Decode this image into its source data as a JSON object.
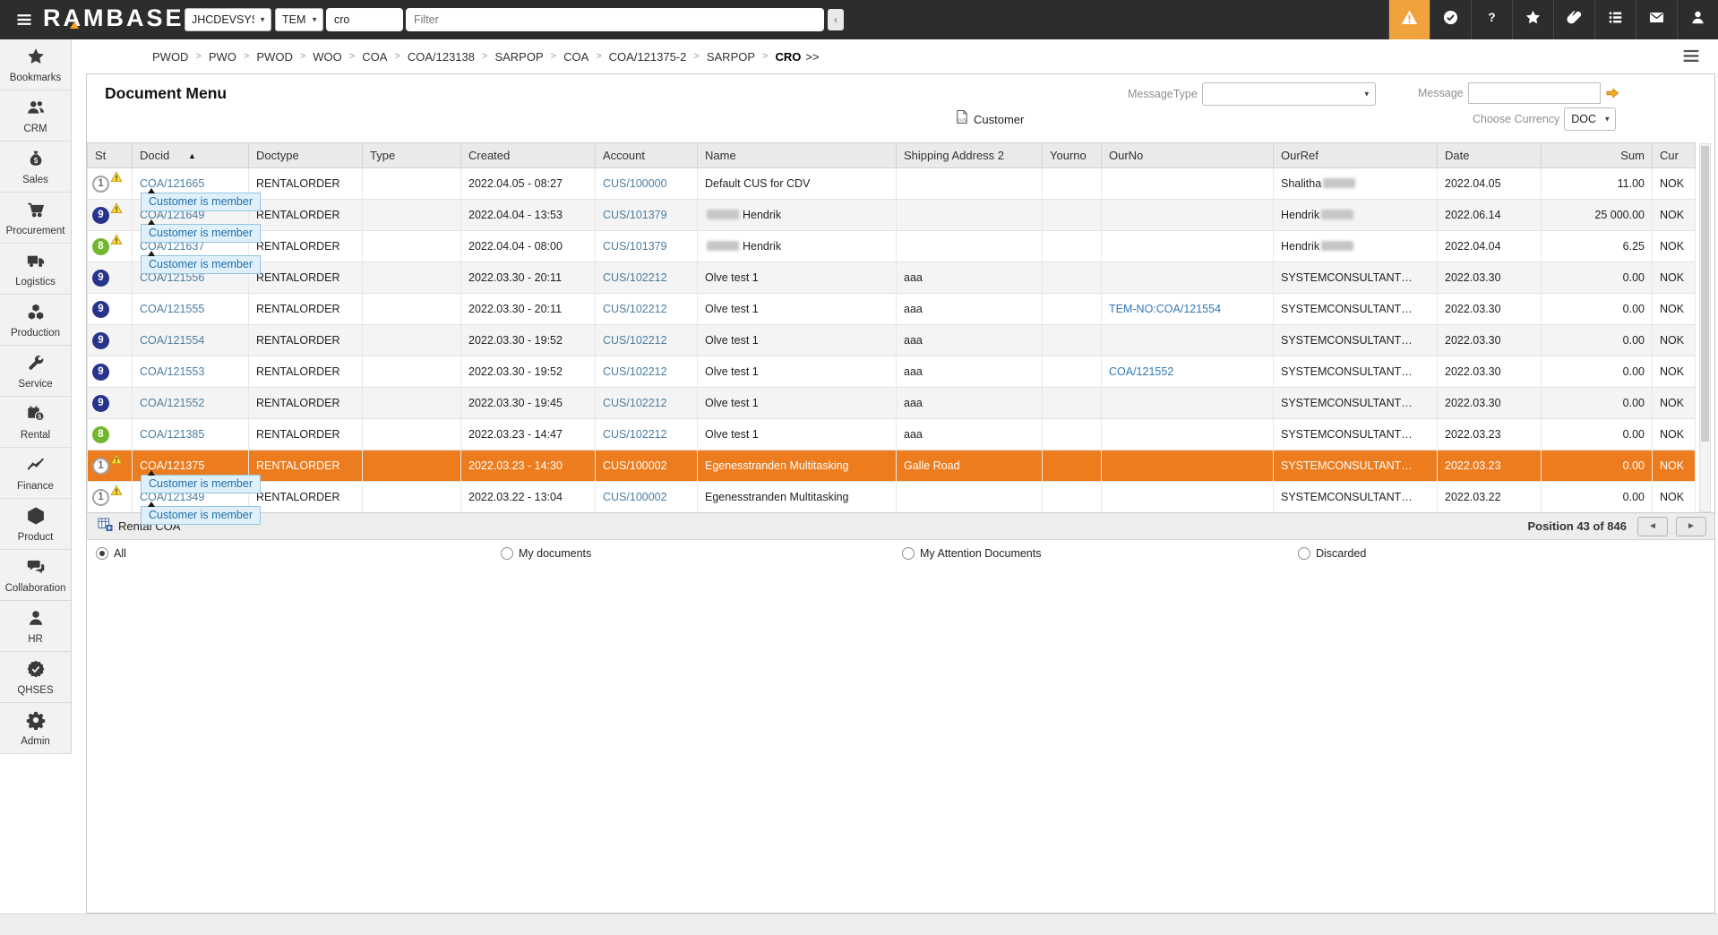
{
  "topbar": {
    "logo": "RAMBASE",
    "system_select": "JHCDEVSYS",
    "module_select": "TEM-NO",
    "search_value": "cro",
    "filter_placeholder": "Filter",
    "collapse_button": "‹",
    "icons": [
      {
        "name": "alert-icon",
        "icon": "alert",
        "active": true
      },
      {
        "name": "approval-icon",
        "icon": "check-seal",
        "active": false
      },
      {
        "name": "help-icon",
        "icon": "help",
        "active": false
      },
      {
        "name": "favorites-icon",
        "icon": "star",
        "active": false
      },
      {
        "name": "attachments-icon",
        "icon": "paperclip",
        "active": false
      },
      {
        "name": "tasklist-icon",
        "icon": "list",
        "active": false
      },
      {
        "name": "messages-icon",
        "icon": "mail",
        "active": false
      },
      {
        "name": "user-icon",
        "icon": "user",
        "active": false
      }
    ]
  },
  "breadcrumb": {
    "items": [
      "PWOD",
      "PWO",
      "PWOD",
      "WOO",
      "COA",
      "COA/123138",
      "SARPOP",
      "COA",
      "COA/121375-2",
      "SARPOP",
      "CRO"
    ],
    "suffix": ">>"
  },
  "sidebar": [
    {
      "label": "Bookmarks",
      "icon": "star"
    },
    {
      "label": "CRM",
      "icon": "people"
    },
    {
      "label": "Sales",
      "icon": "money-bag"
    },
    {
      "label": "Procurement",
      "icon": "cart"
    },
    {
      "label": "Logistics",
      "icon": "truck"
    },
    {
      "label": "Production",
      "icon": "cubes"
    },
    {
      "label": "Service",
      "icon": "wrench"
    },
    {
      "label": "Rental",
      "icon": "calendar-dollar"
    },
    {
      "label": "Finance",
      "icon": "chart-line"
    },
    {
      "label": "Product",
      "icon": "cube"
    },
    {
      "label": "Collaboration",
      "icon": "chat"
    },
    {
      "label": "HR",
      "icon": "person"
    },
    {
      "label": "QHSES",
      "icon": "badge-check"
    },
    {
      "label": "Admin",
      "icon": "gear"
    }
  ],
  "page": {
    "title": "Document Menu",
    "customer_button": "Customer",
    "message_type_label": "MessageType",
    "message_label": "Message",
    "choose_currency_label": "Choose Currency",
    "currency_value": "DOC"
  },
  "table": {
    "columns": [
      "St",
      "Docid",
      "Doctype",
      "Type",
      "Created",
      "Account",
      "Name",
      "Shipping Address 2",
      "Yourno",
      "OurNo",
      "OurRef",
      "Date",
      "Sum",
      "Cur"
    ],
    "sorted_column": "Docid",
    "sort_indicator": "▲",
    "rows": [
      {
        "status": "1",
        "status_style": "plain",
        "warning": true,
        "docid": "COA/121665",
        "tooltip": "Customer is member",
        "doctype": "RENTALORDER",
        "type": "",
        "created": "2022.04.05 - 08:27",
        "account": "CUS/100000",
        "name": "Default CUS for CDV",
        "name_redact": "",
        "shipping": "",
        "yourno": "",
        "ourno": "",
        "ourref": "Shalitha",
        "ourref_redact": "after",
        "date": "2022.04.05",
        "sum": "11.00",
        "cur": "NOK",
        "selected": false
      },
      {
        "status": "9",
        "status_style": "blue",
        "warning": true,
        "docid": "COA/121649",
        "tooltip": "Customer is member",
        "doctype": "RENTALORDER",
        "type": "",
        "created": "2022.04.04 - 13:53",
        "account": "CUS/101379",
        "name": "Hendrik",
        "name_redact": "before",
        "shipping": "",
        "yourno": "",
        "ourno": "",
        "ourref": "Hendrik",
        "ourref_redact": "after",
        "date": "2022.06.14",
        "sum": "25 000.00",
        "cur": "NOK",
        "selected": false
      },
      {
        "status": "8",
        "status_style": "green",
        "warning": true,
        "docid": "COA/121637",
        "tooltip": "Customer is member",
        "doctype": "RENTALORDER",
        "type": "",
        "created": "2022.04.04 - 08:00",
        "account": "CUS/101379",
        "name": "Hendrik",
        "name_redact": "before",
        "shipping": "",
        "yourno": "",
        "ourno": "",
        "ourref": "Hendrik",
        "ourref_redact": "after",
        "date": "2022.04.04",
        "sum": "6.25",
        "cur": "NOK",
        "selected": false
      },
      {
        "status": "9",
        "status_style": "blue",
        "warning": false,
        "docid": "COA/121556",
        "tooltip": "",
        "doctype": "RENTALORDER",
        "type": "",
        "created": "2022.03.30 - 20:11",
        "account": "CUS/102212",
        "name": "Olve test 1",
        "name_redact": "",
        "shipping": "aaa",
        "yourno": "",
        "ourno": "",
        "ourref": "SYSTEMCONSULTANT…",
        "ourref_redact": "",
        "date": "2022.03.30",
        "sum": "0.00",
        "cur": "NOK",
        "selected": false
      },
      {
        "status": "9",
        "status_style": "blue",
        "warning": false,
        "docid": "COA/121555",
        "tooltip": "",
        "doctype": "RENTALORDER",
        "type": "",
        "created": "2022.03.30 - 20:11",
        "account": "CUS/102212",
        "name": "Olve test 1",
        "name_redact": "",
        "shipping": "aaa",
        "yourno": "",
        "ourno": "TEM-NO:COA/121554",
        "ourref": "SYSTEMCONSULTANT…",
        "ourref_redact": "",
        "date": "2022.03.30",
        "sum": "0.00",
        "cur": "NOK",
        "selected": false
      },
      {
        "status": "9",
        "status_style": "blue",
        "warning": false,
        "docid": "COA/121554",
        "tooltip": "",
        "doctype": "RENTALORDER",
        "type": "",
        "created": "2022.03.30 - 19:52",
        "account": "CUS/102212",
        "name": "Olve test 1",
        "name_redact": "",
        "shipping": "aaa",
        "yourno": "",
        "ourno": "",
        "ourref": "SYSTEMCONSULTANT…",
        "ourref_redact": "",
        "date": "2022.03.30",
        "sum": "0.00",
        "cur": "NOK",
        "selected": false
      },
      {
        "status": "9",
        "status_style": "blue",
        "warning": false,
        "docid": "COA/121553",
        "tooltip": "",
        "doctype": "RENTALORDER",
        "type": "",
        "created": "2022.03.30 - 19:52",
        "account": "CUS/102212",
        "name": "Olve test 1",
        "name_redact": "",
        "shipping": "aaa",
        "yourno": "",
        "ourno": "COA/121552",
        "ourref": "SYSTEMCONSULTANT…",
        "ourref_redact": "",
        "date": "2022.03.30",
        "sum": "0.00",
        "cur": "NOK",
        "selected": false
      },
      {
        "status": "9",
        "status_style": "blue",
        "warning": false,
        "docid": "COA/121552",
        "tooltip": "",
        "doctype": "RENTALORDER",
        "type": "",
        "created": "2022.03.30 - 19:45",
        "account": "CUS/102212",
        "name": "Olve test 1",
        "name_redact": "",
        "shipping": "aaa",
        "yourno": "",
        "ourno": "",
        "ourref": "SYSTEMCONSULTANT…",
        "ourref_redact": "",
        "date": "2022.03.30",
        "sum": "0.00",
        "cur": "NOK",
        "selected": false
      },
      {
        "status": "8",
        "status_style": "green",
        "warning": false,
        "docid": "COA/121385",
        "tooltip": "",
        "doctype": "RENTALORDER",
        "type": "",
        "created": "2022.03.23 - 14:47",
        "account": "CUS/102212",
        "name": "Olve test 1",
        "name_redact": "",
        "shipping": "aaa",
        "yourno": "",
        "ourno": "",
        "ourref": "SYSTEMCONSULTANT…",
        "ourref_redact": "",
        "date": "2022.03.23",
        "sum": "0.00",
        "cur": "NOK",
        "selected": false
      },
      {
        "status": "1",
        "status_style": "plain",
        "warning": true,
        "docid": "COA/121375",
        "tooltip": "Customer is member",
        "doctype": "RENTALORDER",
        "type": "",
        "created": "2022.03.23 - 14:30",
        "account": "CUS/100002",
        "name": "Egenesstranden Multitasking",
        "name_redact": "",
        "shipping": "Galle Road",
        "yourno": "",
        "ourno": "",
        "ourref": "SYSTEMCONSULTANT…",
        "ourref_redact": "",
        "date": "2022.03.23",
        "sum": "0.00",
        "cur": "NOK",
        "selected": true
      },
      {
        "status": "1",
        "status_style": "plain",
        "warning": true,
        "docid": "COA/121349",
        "tooltip": "Customer is member",
        "doctype": "RENTALORDER",
        "type": "",
        "created": "2022.03.22 - 13:04",
        "account": "CUS/100002",
        "name": "Egenesstranden Multitasking",
        "name_redact": "",
        "shipping": "",
        "yourno": "",
        "ourno": "",
        "ourref": "SYSTEMCONSULTANT…",
        "ourref_redact": "",
        "date": "2022.03.22",
        "sum": "0.00",
        "cur": "NOK",
        "selected": false
      }
    ]
  },
  "footer": {
    "view_label": "Rental COA",
    "position": "Position 43 of 846",
    "prev_label": "◄",
    "next_label": "►"
  },
  "filters": [
    {
      "label": "All",
      "selected": true
    },
    {
      "label": "My documents",
      "selected": false
    },
    {
      "label": "My Attention Documents",
      "selected": false
    },
    {
      "label": "Discarded",
      "selected": false
    }
  ]
}
